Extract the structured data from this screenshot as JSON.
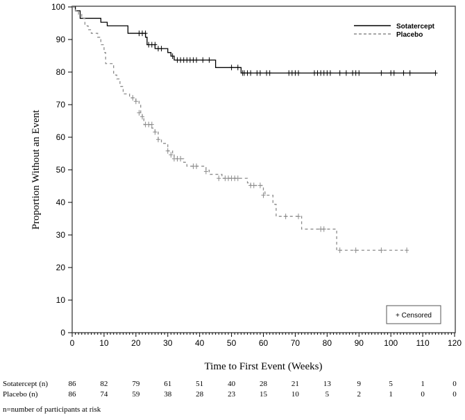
{
  "chart_data": {
    "type": "line",
    "subtype": "kaplan-meier",
    "title": "",
    "xlabel": "Time to First Event (Weeks)",
    "ylabel": "Proportion Without an Event",
    "xlim": [
      0,
      120
    ],
    "ylim": [
      0,
      100
    ],
    "xticks": [
      0,
      10,
      20,
      30,
      40,
      50,
      60,
      70,
      80,
      90,
      100,
      110,
      120
    ],
    "yticks": [
      0,
      10,
      20,
      30,
      40,
      50,
      60,
      70,
      80,
      90,
      100
    ],
    "legend": {
      "position": "top-right",
      "censored_label": "+ Censored"
    },
    "series": [
      {
        "name": "Sotatercept",
        "style": "solid",
        "color": "#000000",
        "steps": [
          [
            0,
            100
          ],
          [
            1,
            98.8
          ],
          [
            2.5,
            96.5
          ],
          [
            9,
            95.3
          ],
          [
            11,
            94.2
          ],
          [
            17.5,
            91.9
          ],
          [
            23,
            90.7
          ],
          [
            23.5,
            88.4
          ],
          [
            26,
            87.2
          ],
          [
            30,
            86.0
          ],
          [
            31,
            84.9
          ],
          [
            32,
            83.7
          ],
          [
            45,
            81.4
          ],
          [
            53,
            79.7
          ],
          [
            114,
            79.7
          ]
        ],
        "censored": [
          [
            21,
            91.9
          ],
          [
            22,
            91.9
          ],
          [
            23,
            91.9
          ],
          [
            24,
            88.4
          ],
          [
            25,
            88.4
          ],
          [
            26,
            88.4
          ],
          [
            27,
            87.2
          ],
          [
            28,
            87.2
          ],
          [
            31.5,
            84.9
          ],
          [
            33,
            83.7
          ],
          [
            34,
            83.7
          ],
          [
            35,
            83.7
          ],
          [
            36,
            83.7
          ],
          [
            37,
            83.7
          ],
          [
            38,
            83.7
          ],
          [
            39,
            83.7
          ],
          [
            41,
            83.7
          ],
          [
            43,
            83.7
          ],
          [
            50,
            81.4
          ],
          [
            52,
            81.4
          ],
          [
            53.5,
            79.7
          ],
          [
            54,
            79.7
          ],
          [
            55,
            79.7
          ],
          [
            56,
            79.7
          ],
          [
            58,
            79.7
          ],
          [
            59,
            79.7
          ],
          [
            61,
            79.7
          ],
          [
            62,
            79.7
          ],
          [
            68,
            79.7
          ],
          [
            69,
            79.7
          ],
          [
            70,
            79.7
          ],
          [
            71,
            79.7
          ],
          [
            76,
            79.7
          ],
          [
            77,
            79.7
          ],
          [
            78,
            79.7
          ],
          [
            79,
            79.7
          ],
          [
            80,
            79.7
          ],
          [
            81,
            79.7
          ],
          [
            84,
            79.7
          ],
          [
            86,
            79.7
          ],
          [
            88,
            79.7
          ],
          [
            89,
            79.7
          ],
          [
            90,
            79.7
          ],
          [
            97,
            79.7
          ],
          [
            100,
            79.7
          ],
          [
            101,
            79.7
          ],
          [
            104,
            79.7
          ],
          [
            106,
            79.7
          ],
          [
            114,
            79.7
          ]
        ]
      },
      {
        "name": "Placebo",
        "style": "dashed",
        "color": "#8a8a8a",
        "steps": [
          [
            0,
            100
          ],
          [
            1,
            98.8
          ],
          [
            2,
            97.7
          ],
          [
            3,
            96.5
          ],
          [
            4,
            94.2
          ],
          [
            5,
            93.0
          ],
          [
            6,
            91.9
          ],
          [
            8,
            90.7
          ],
          [
            9,
            88.4
          ],
          [
            10,
            86.0
          ],
          [
            10.5,
            82.6
          ],
          [
            13,
            79.1
          ],
          [
            14,
            77.9
          ],
          [
            15,
            75.6
          ],
          [
            16,
            73.3
          ],
          [
            18,
            72.1
          ],
          [
            20,
            71.0
          ],
          [
            21,
            69.8
          ],
          [
            21.5,
            67.5
          ],
          [
            22,
            66.3
          ],
          [
            22.5,
            63.9
          ],
          [
            25,
            62.8
          ],
          [
            26,
            61.6
          ],
          [
            27,
            59.3
          ],
          [
            28,
            58.1
          ],
          [
            30,
            55.8
          ],
          [
            31.5,
            54.6
          ],
          [
            32,
            53.4
          ],
          [
            35,
            52.3
          ],
          [
            36,
            51.1
          ],
          [
            42,
            49.9
          ],
          [
            43,
            48.6
          ],
          [
            47,
            47.4
          ],
          [
            55,
            46.0
          ],
          [
            56,
            45.2
          ],
          [
            60,
            43.8
          ],
          [
            60.5,
            42.2
          ],
          [
            63,
            39.4
          ],
          [
            64,
            35.7
          ],
          [
            72,
            31.8
          ],
          [
            83,
            25.3
          ],
          [
            105,
            25.3
          ]
        ],
        "censored": [
          [
            19,
            72.1
          ],
          [
            20,
            71.0
          ],
          [
            21,
            67.5
          ],
          [
            22,
            66.3
          ],
          [
            23,
            63.9
          ],
          [
            24,
            63.9
          ],
          [
            25,
            63.9
          ],
          [
            26,
            61.6
          ],
          [
            27,
            59.3
          ],
          [
            30,
            55.8
          ],
          [
            31,
            54.6
          ],
          [
            32,
            53.4
          ],
          [
            33,
            53.4
          ],
          [
            34,
            53.4
          ],
          [
            38,
            51.1
          ],
          [
            39,
            51.1
          ],
          [
            42,
            49.5
          ],
          [
            46,
            47.4
          ],
          [
            48,
            47.4
          ],
          [
            49,
            47.4
          ],
          [
            50,
            47.4
          ],
          [
            51,
            47.4
          ],
          [
            52,
            47.4
          ],
          [
            56,
            45.2
          ],
          [
            57,
            45.2
          ],
          [
            59,
            45.2
          ],
          [
            60,
            42.2
          ],
          [
            67,
            35.7
          ],
          [
            71,
            35.7
          ],
          [
            78,
            31.8
          ],
          [
            79,
            31.8
          ],
          [
            84,
            25.3
          ],
          [
            89,
            25.3
          ],
          [
            97,
            25.3
          ],
          [
            105,
            25.3
          ]
        ]
      }
    ]
  },
  "at_risk": {
    "rows": [
      {
        "label": "Sotatercept (n)",
        "values": [
          "86",
          "82",
          "79",
          "61",
          "51",
          "40",
          "28",
          "21",
          "13",
          "9",
          "5",
          "1",
          "0"
        ]
      },
      {
        "label": "Placebo (n)",
        "values": [
          "86",
          "74",
          "59",
          "38",
          "28",
          "23",
          "15",
          "10",
          "5",
          "2",
          "1",
          "0",
          "0"
        ]
      }
    ],
    "note": "n=number of participants at risk"
  }
}
